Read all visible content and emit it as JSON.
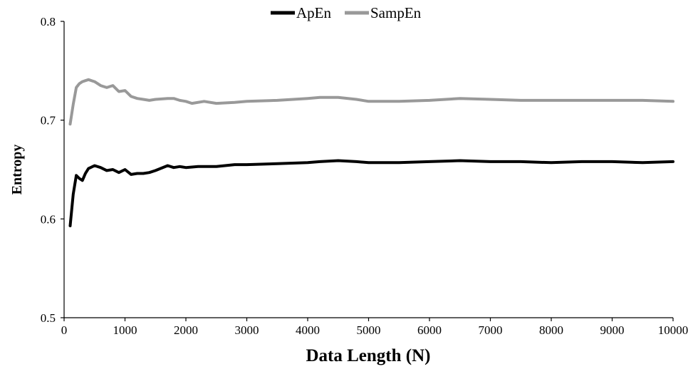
{
  "chart_data": {
    "type": "line",
    "xlabel": "Data Length (N)",
    "ylabel": "Entropy",
    "xlim": [
      0,
      10000
    ],
    "ylim": [
      0.5,
      0.8
    ],
    "x_ticks": [
      0,
      1000,
      2000,
      3000,
      4000,
      5000,
      6000,
      7000,
      8000,
      9000,
      10000
    ],
    "x_tick_labels": [
      "0",
      "1000",
      "2000",
      "3000",
      "4000",
      "5000",
      "6000",
      "7000",
      "8000",
      "9000",
      "10000"
    ],
    "y_ticks": [
      0.5,
      0.6,
      0.7,
      0.8
    ],
    "y_tick_labels": [
      "0.5",
      "0.6",
      "0.7",
      "0.8"
    ],
    "grid": false,
    "legend_position": "top-center",
    "series": [
      {
        "name": "ApEn",
        "color": "#000000",
        "x": [
          100,
          150,
          200,
          250,
          300,
          350,
          400,
          500,
          600,
          700,
          800,
          900,
          1000,
          1100,
          1200,
          1300,
          1400,
          1500,
          1700,
          1800,
          1900,
          2000,
          2200,
          2500,
          2800,
          3000,
          3500,
          4000,
          4200,
          4500,
          4800,
          5000,
          5500,
          6000,
          6500,
          7000,
          7500,
          8000,
          8500,
          9000,
          9500,
          10000
        ],
        "values": [
          0.593,
          0.625,
          0.644,
          0.641,
          0.639,
          0.646,
          0.651,
          0.654,
          0.652,
          0.649,
          0.65,
          0.647,
          0.65,
          0.645,
          0.646,
          0.646,
          0.647,
          0.649,
          0.654,
          0.652,
          0.653,
          0.652,
          0.653,
          0.653,
          0.655,
          0.655,
          0.656,
          0.657,
          0.658,
          0.659,
          0.658,
          0.657,
          0.657,
          0.658,
          0.659,
          0.658,
          0.658,
          0.657,
          0.658,
          0.658,
          0.657,
          0.658
        ]
      },
      {
        "name": "SampEn",
        "color": "#999999",
        "x": [
          100,
          150,
          200,
          250,
          300,
          350,
          400,
          500,
          600,
          700,
          800,
          900,
          1000,
          1100,
          1200,
          1300,
          1400,
          1500,
          1700,
          1800,
          1900,
          2000,
          2100,
          2300,
          2500,
          2800,
          3000,
          3500,
          4000,
          4200,
          4500,
          4800,
          5000,
          5500,
          6000,
          6500,
          7000,
          7500,
          8000,
          8500,
          9000,
          9500,
          10000
        ],
        "values": [
          0.696,
          0.716,
          0.733,
          0.737,
          0.739,
          0.74,
          0.741,
          0.739,
          0.735,
          0.733,
          0.735,
          0.729,
          0.73,
          0.724,
          0.722,
          0.721,
          0.72,
          0.721,
          0.722,
          0.722,
          0.72,
          0.719,
          0.717,
          0.719,
          0.717,
          0.718,
          0.719,
          0.72,
          0.722,
          0.723,
          0.723,
          0.721,
          0.719,
          0.719,
          0.72,
          0.722,
          0.721,
          0.72,
          0.72,
          0.72,
          0.72,
          0.72,
          0.719
        ]
      }
    ]
  }
}
